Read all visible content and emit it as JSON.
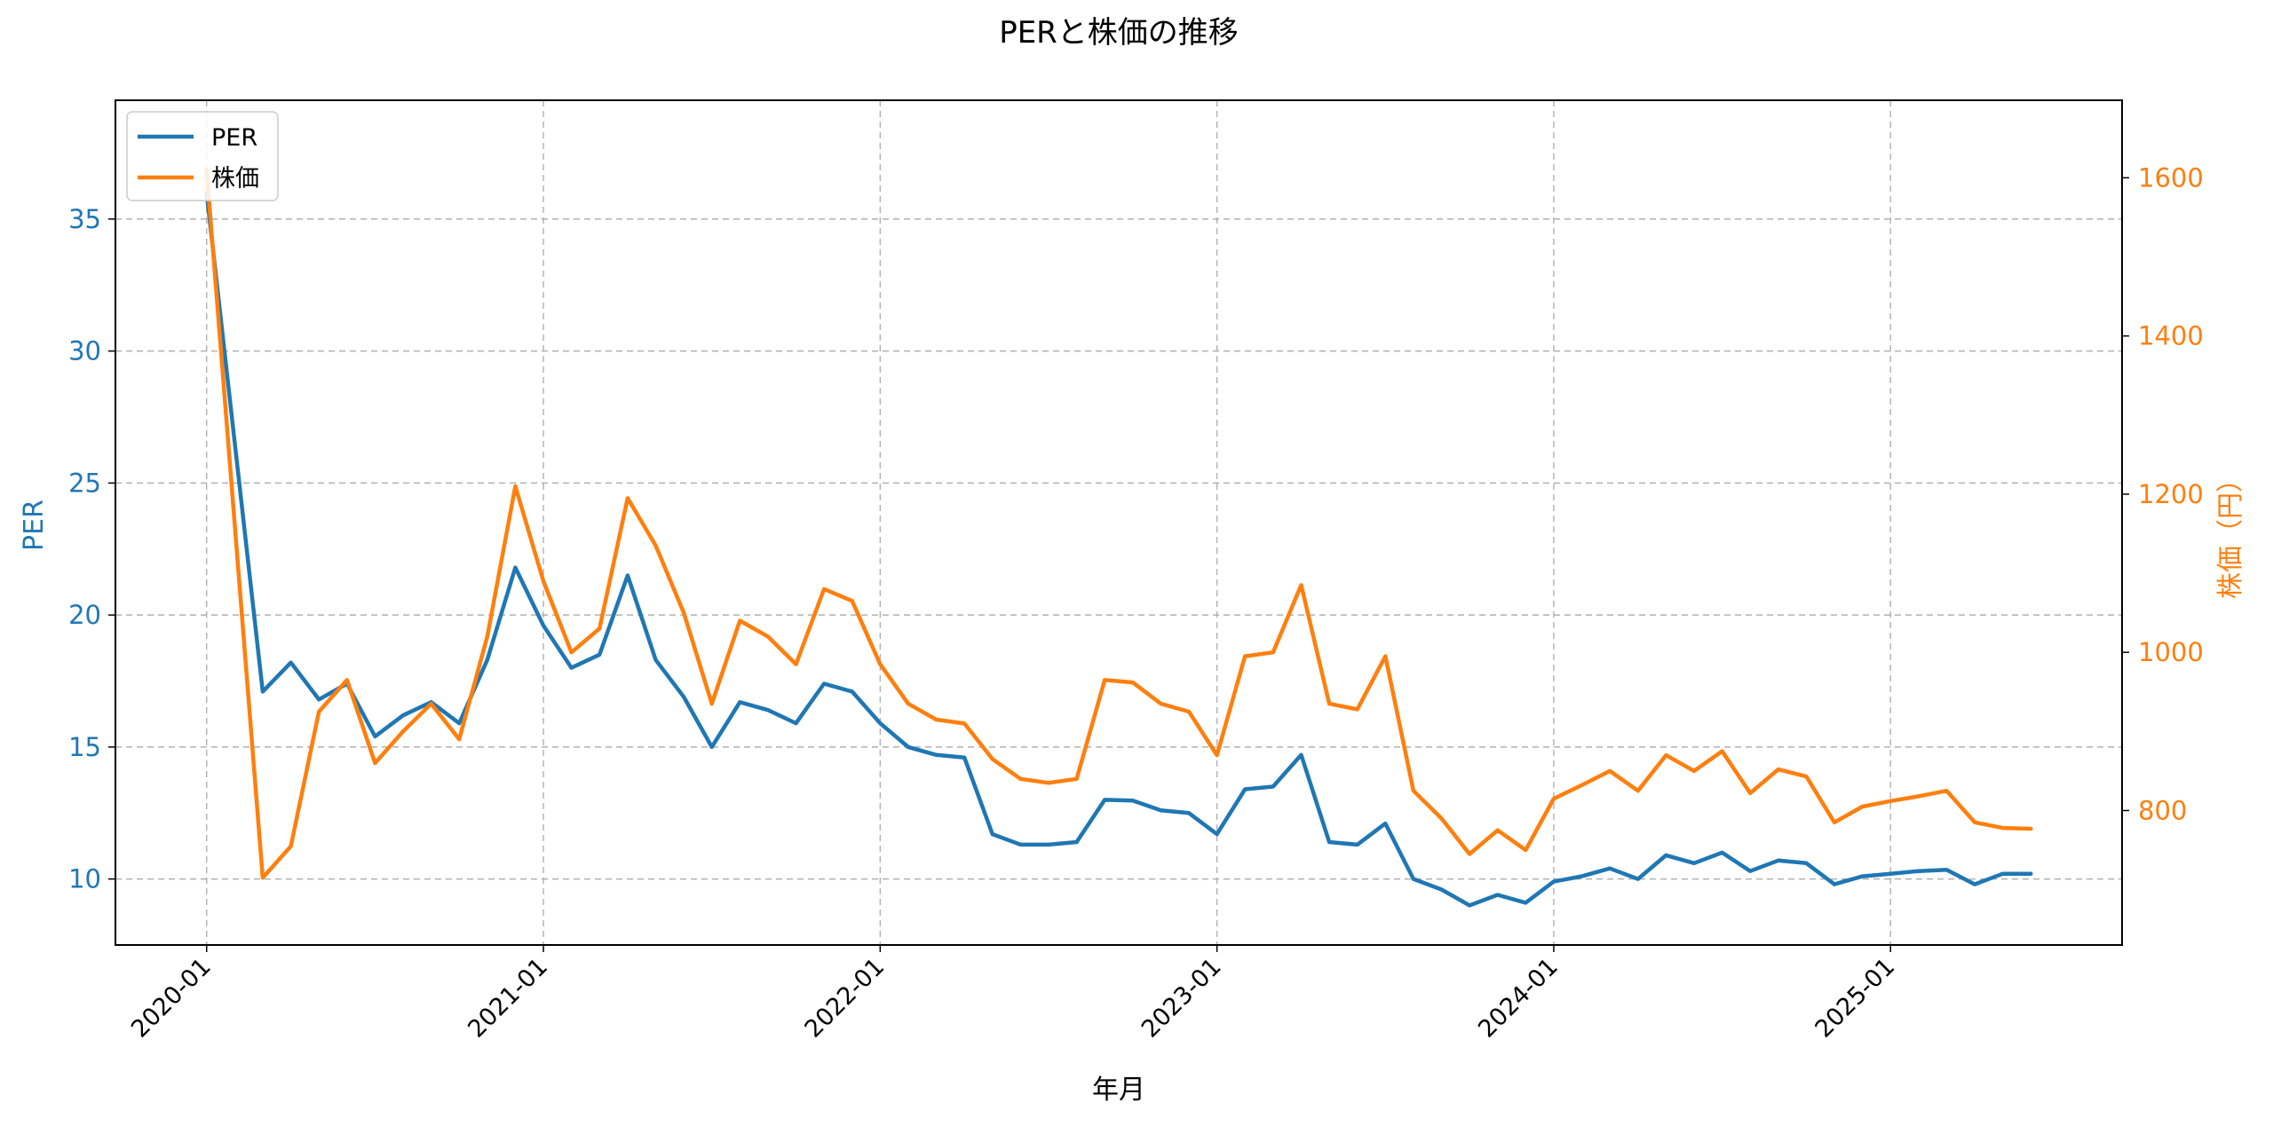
{
  "chart_data": {
    "type": "line",
    "title": "PERと株価の推移",
    "xlabel": "年月",
    "ylabel_left": "PER",
    "ylabel_right": "株価（円）",
    "colors": {
      "per": "#1f77b4",
      "price": "#ff7f0e",
      "grid": "#b0b0b0",
      "axis": "#000000"
    },
    "x_tick_labels": [
      "2020-01",
      "2021-01",
      "2022-01",
      "2023-01",
      "2024-01",
      "2025-01"
    ],
    "left_ticks": [
      10,
      15,
      20,
      25,
      30,
      35
    ],
    "right_ticks": [
      800,
      1000,
      1200,
      1400,
      1600
    ],
    "ylim_left": [
      7.5,
      39.5
    ],
    "ylim_right": [
      630,
      1698
    ],
    "xlim_months": [
      -3.25,
      68.25
    ],
    "grid": true,
    "legend_position": "top-left",
    "x_months": [
      0,
      2,
      3,
      4,
      5,
      6,
      7,
      8,
      9,
      10,
      11,
      12,
      13,
      14,
      15,
      16,
      17,
      18,
      19,
      20,
      21,
      22,
      23,
      24,
      25,
      26,
      27,
      28,
      29,
      30,
      31,
      32,
      33,
      34,
      35,
      36,
      37,
      38,
      39,
      40,
      41,
      42,
      43,
      44,
      45,
      46,
      47,
      48,
      49,
      50,
      51,
      52,
      53,
      54,
      55,
      56,
      57,
      58,
      59,
      60,
      61,
      62,
      63,
      64,
      65
    ],
    "series": [
      {
        "name": "PER",
        "axis": "left",
        "values": [
          36.0,
          17.1,
          18.2,
          16.8,
          17.4,
          15.4,
          16.2,
          16.7,
          15.9,
          18.3,
          21.8,
          19.6,
          18.0,
          18.5,
          21.5,
          18.3,
          16.9,
          15.0,
          16.7,
          16.4,
          15.9,
          17.4,
          17.1,
          15.9,
          15.0,
          14.7,
          14.6,
          11.7,
          11.3,
          11.3,
          11.4,
          13.0,
          12.97,
          12.6,
          12.5,
          11.7,
          13.4,
          13.5,
          14.7,
          11.4,
          11.3,
          12.1,
          10.0,
          9.6,
          9.0,
          9.4,
          9.1,
          9.9,
          10.1,
          10.4,
          10.0,
          10.9,
          10.6,
          11.0,
          10.3,
          10.7,
          10.6,
          9.8,
          10.1,
          10.2,
          10.3,
          10.35,
          9.8,
          10.2,
          10.2
        ]
      },
      {
        "name": "株価",
        "axis": "right",
        "values": [
          1610,
          715,
          755,
          925,
          965,
          860,
          900,
          935,
          890,
          1020,
          1210,
          1090,
          1000,
          1030,
          1195,
          1135,
          1050,
          935,
          1040,
          1020,
          985,
          1080,
          1065,
          985,
          935,
          915,
          910,
          865,
          840,
          835,
          840,
          965,
          962,
          935,
          925,
          870,
          995,
          1000,
          1085,
          935,
          928,
          995,
          825,
          790,
          745,
          775,
          750,
          815,
          832,
          850,
          825,
          870,
          850,
          875,
          822,
          852,
          843,
          785,
          805,
          812,
          818,
          825,
          785,
          778,
          777
        ]
      }
    ]
  }
}
